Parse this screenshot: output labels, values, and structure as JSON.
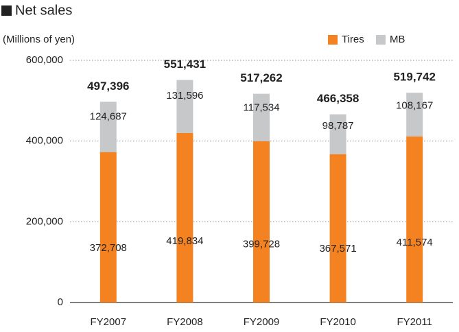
{
  "chart_data": {
    "type": "stacked_bar",
    "title": "Net sales",
    "ylabel": "(Millions of yen)",
    "categories": [
      "FY2007",
      "FY2008",
      "FY2009",
      "FY2010",
      "FY2011"
    ],
    "series": [
      {
        "name": "Tires",
        "color": "#f58220",
        "values": [
          372708,
          419834,
          399728,
          367571,
          411574
        ],
        "value_labels": [
          "372,708",
          "419,834",
          "399,728",
          "367,571",
          "411,574"
        ]
      },
      {
        "name": "MB",
        "color": "#c7c8ca",
        "values": [
          124687,
          131596,
          117534,
          98787,
          108167
        ],
        "value_labels": [
          "124,687",
          "131,596",
          "117,534",
          "98,787",
          "108,167"
        ]
      }
    ],
    "totals": [
      497396,
      551431,
      517262,
      466358,
      519742
    ],
    "total_labels": [
      "497,396",
      "551,431",
      "517,262",
      "466,358",
      "519,742"
    ],
    "ylim": [
      0,
      600000
    ],
    "yticks": [
      0,
      {
        "value": 200000,
        "label": "200,000"
      },
      {
        "value": 400000,
        "label": "400,000"
      },
      {
        "value": 600000,
        "label": "600,000"
      }
    ],
    "grid": true,
    "legend": "top-right"
  }
}
